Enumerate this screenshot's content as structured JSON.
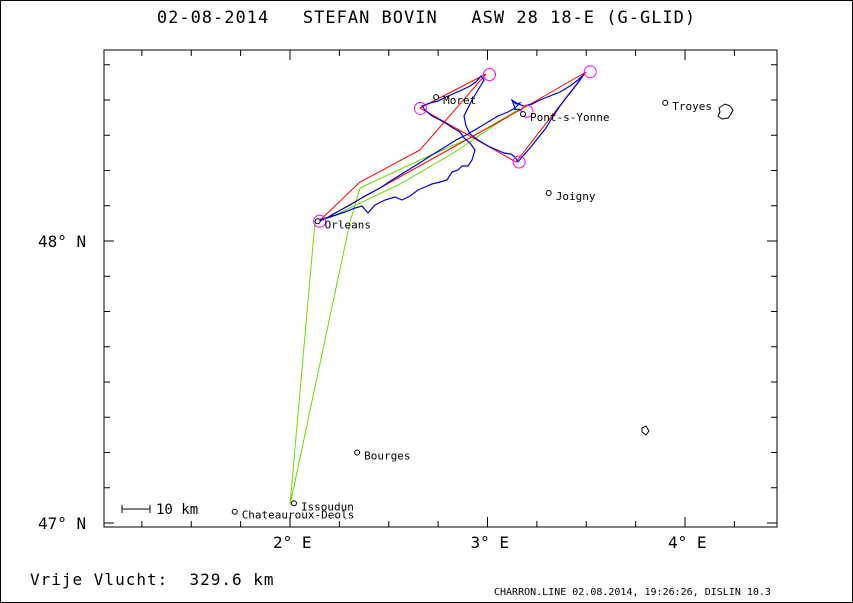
{
  "title": "02-08-2014   STEFAN BOVIN   ASW 28 18-E (G-GLID)",
  "footer": {
    "distance_label": "Vrije Vlucht:  329.6 km",
    "program": "CHARRON.LINE 02.08.2014, 19:26:26, DISLIN 10.3"
  },
  "map": {
    "lat_labels": [
      {
        "text": "48° N",
        "lat": 48.0
      },
      {
        "text": "47° N",
        "lat": 47.0
      }
    ],
    "lon_labels": [
      {
        "text": "2° E",
        "lon": 2.0
      },
      {
        "text": "3° E",
        "lon": 3.0
      },
      {
        "text": "4° E",
        "lon": 4.0
      }
    ],
    "scale_label": "10 km",
    "towns": [
      {
        "name": "Moret",
        "lon": 2.74,
        "lat": 48.51
      },
      {
        "name": "Troyes",
        "lon": 3.9,
        "lat": 48.49
      },
      {
        "name": "Pont-s-Yonne",
        "lon": 3.18,
        "lat": 48.45
      },
      {
        "name": "Joigny",
        "lon": 3.31,
        "lat": 48.17
      },
      {
        "name": "Orleans",
        "lon": 2.14,
        "lat": 48.07
      },
      {
        "name": "Bourges",
        "lon": 2.34,
        "lat": 47.25
      },
      {
        "name": "Issoudun",
        "lon": 2.02,
        "lat": 47.07
      },
      {
        "name": "Chateauroux-Deols",
        "lon": 1.72,
        "lat": 47.04
      }
    ],
    "turnpoints": [
      {
        "lon": 2.15,
        "lat": 48.07
      },
      {
        "lon": 3.01,
        "lat": 48.59
      },
      {
        "lon": 2.66,
        "lat": 48.47
      },
      {
        "lon": 3.16,
        "lat": 48.28
      },
      {
        "lon": 3.52,
        "lat": 48.6
      },
      {
        "lon": 3.2,
        "lat": 48.46
      }
    ],
    "colors": {
      "track": "#0000cc",
      "task": "#ff0000",
      "legs": "#66dd00",
      "turnpoint": "#ff00ff"
    }
  }
}
